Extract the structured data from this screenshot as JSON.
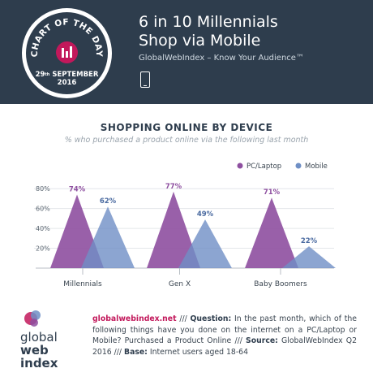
{
  "header": {
    "badge_arc": "CHART OF THE DAY",
    "badge_date_day": "29",
    "badge_date_suffix": "th",
    "badge_date_month": "SEPTEMBER",
    "badge_date_year": "2016",
    "title_line1": "6 in 10 Millennials",
    "title_line2": "Shop via Mobile",
    "subtitle": "GlobalWebIndex – Know Your Audience™"
  },
  "chart_data": {
    "type": "area",
    "title": "SHOPPING ONLINE BY DEVICE",
    "subtitle": "% who purchased a product online via the following last month",
    "categories": [
      "Millennials",
      "Gen X",
      "Baby Boomers"
    ],
    "series": [
      {
        "name": "PC/Laptop",
        "values": [
          74,
          77,
          71
        ],
        "color": "#8e4fa0"
      },
      {
        "name": "Mobile",
        "values": [
          62,
          49,
          22
        ],
        "color": "#6f8fc5"
      }
    ],
    "value_labels": {
      "PC/Laptop": [
        "74%",
        "77%",
        "71%"
      ],
      "Mobile": [
        "62%",
        "49%",
        "22%"
      ]
    },
    "y_ticks": [
      "80%",
      "60%",
      "40%",
      "20%"
    ],
    "ylim": [
      0,
      90
    ],
    "legend_position": "top-right",
    "grid": true
  },
  "footer": {
    "logo_line1": "global",
    "logo_line2": "web",
    "logo_line3": "index",
    "site": "globalwebindex.net",
    "sep1": " /// ",
    "question_label": "Question:",
    "question_text": " In the past month, which of the following things have you done on the internet on a PC/Laptop or Mobile? Purchased a Product Online ",
    "sep2": "/// ",
    "source_label": "Source:",
    "source_text": " GlobalWebIndex Q2 2016 ",
    "sep3": "/// ",
    "base_label": "Base:",
    "base_text": " Internet users aged 18-64"
  }
}
